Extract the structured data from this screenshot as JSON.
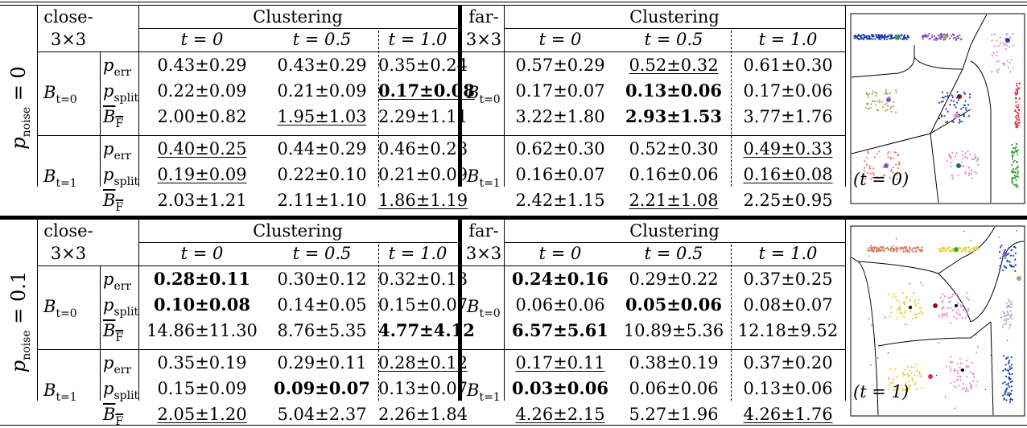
{
  "labels": {
    "close_a": "close-",
    "close_b": "3×3",
    "far_a": "far-",
    "far_b": "3×3",
    "clustering": "Clustering",
    "t0": "t = 0",
    "t05": "t = 0.5",
    "t10": "t = 1.0",
    "p_err": "p",
    "p_err_sub": "err",
    "p_split": "p",
    "p_split_sub": "split",
    "bf": "B",
    "bf_sub": "F",
    "b_t0": "B",
    "b_t0_sub": "t=0",
    "b_t1": "B",
    "b_t1_sub": "t=1",
    "pnoise0": "p",
    "pnoise_sub": "noise",
    "pnoise0_val": " = 0",
    "pnoise1_val": " = 0.1",
    "img_caption_top": "(t = 0)",
    "img_caption_bottom": "(t = 1)"
  },
  "top": {
    "close": {
      "b0": [
        [
          "0.43±0.29",
          "0.43±0.29",
          "0.35±0.24"
        ],
        [
          "0.22±0.09",
          "0.21±0.09",
          "0.17±0.08"
        ],
        [
          "2.00±0.82",
          "1.95±1.03",
          "2.29±1.11"
        ]
      ],
      "b1": [
        [
          "0.40±0.25",
          "0.44±0.29",
          "0.46±0.28"
        ],
        [
          "0.19±0.09",
          "0.22±0.10",
          "0.21±0.09"
        ],
        [
          "2.03±1.21",
          "2.11±1.10",
          "1.86±1.19"
        ]
      ]
    },
    "far": {
      "b0": [
        [
          "0.57±0.29",
          "0.52±0.32",
          "0.61±0.30"
        ],
        [
          "0.17±0.07",
          "0.13±0.06",
          "0.17±0.06"
        ],
        [
          "3.22±1.80",
          "2.93±1.53",
          "3.77±1.76"
        ]
      ],
      "b1": [
        [
          "0.62±0.30",
          "0.52±0.30",
          "0.49±0.33"
        ],
        [
          "0.16±0.07",
          "0.16±0.06",
          "0.16±0.08"
        ],
        [
          "2.42±1.15",
          "2.21±1.08",
          "2.25±0.95"
        ]
      ]
    }
  },
  "bottom": {
    "close": {
      "b0": [
        [
          "0.28±0.11",
          "0.30±0.12",
          "0.32±0.13"
        ],
        [
          "0.10±0.08",
          "0.14±0.05",
          "0.15±0.07"
        ],
        [
          "14.86±11.30",
          "8.76±5.35",
          "4.77±4.12"
        ]
      ],
      "b1": [
        [
          "0.35±0.19",
          "0.29±0.11",
          "0.28±0.12"
        ],
        [
          "0.15±0.09",
          "0.09±0.07",
          "0.13±0.07"
        ],
        [
          "2.05±1.20",
          "5.04±2.37",
          "2.26±1.84"
        ]
      ]
    },
    "far": {
      "b0": [
        [
          "0.24±0.16",
          "0.29±0.22",
          "0.37±0.25"
        ],
        [
          "0.06±0.06",
          "0.05±0.06",
          "0.08±0.07"
        ],
        [
          "6.57±5.61",
          "10.89±5.36",
          "12.18±9.52"
        ]
      ],
      "b1": [
        [
          "0.17±0.11",
          "0.38±0.19",
          "0.37±0.20"
        ],
        [
          "0.03±0.06",
          "0.06±0.06",
          "0.13±0.06"
        ],
        [
          "4.26±2.15",
          "5.27±1.96",
          "4.26±1.76"
        ]
      ]
    }
  },
  "styles": {
    "top.close.b0": [
      [
        "",
        "",
        ""
      ],
      [
        "",
        "",
        "bu"
      ],
      [
        "",
        "u",
        ""
      ]
    ],
    "top.close.b1": [
      [
        "u",
        "",
        ""
      ],
      [
        "u",
        "",
        ""
      ],
      [
        "",
        "",
        "u"
      ]
    ],
    "top.far.b0": [
      [
        "",
        "u",
        ""
      ],
      [
        "",
        "b",
        ""
      ],
      [
        "",
        "b",
        ""
      ]
    ],
    "top.far.b1": [
      [
        "",
        "",
        "u"
      ],
      [
        "",
        "",
        "u"
      ],
      [
        "",
        "u",
        ""
      ]
    ],
    "bottom.close.b0": [
      [
        "b",
        "",
        ""
      ],
      [
        "b",
        "",
        ""
      ],
      [
        "",
        "",
        "b"
      ]
    ],
    "bottom.close.b1": [
      [
        "",
        "",
        "u"
      ],
      [
        "",
        "b",
        ""
      ],
      [
        "u",
        "",
        ""
      ]
    ],
    "bottom.far.b0": [
      [
        "b",
        "",
        ""
      ],
      [
        "",
        "b",
        ""
      ],
      [
        "b",
        "",
        ""
      ]
    ],
    "bottom.far.b1": [
      [
        "u",
        "",
        ""
      ],
      [
        "b",
        "",
        ""
      ],
      [
        "u",
        "",
        "u"
      ]
    ]
  },
  "colors": {
    "blue": "#1f3fb0",
    "green": "#3aa13a",
    "purple": "#8a4fc8",
    "pink": "#e58ac8",
    "olive": "#a8a860",
    "darkred": "#8a1020",
    "red": "#e03040",
    "salmon": "#d9826a",
    "teal": "#1f6a78",
    "yellow": "#e8d040",
    "orange": "#c06040"
  }
}
